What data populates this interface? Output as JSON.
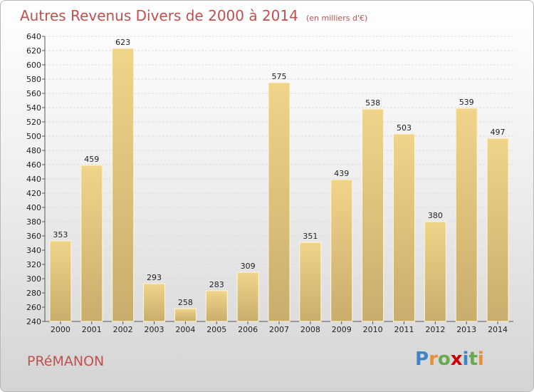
{
  "title": "Autres Revenus Divers de 2000 à 2014",
  "unit_note": "(en milliers d'€)",
  "town": "PRéMANON",
  "logo": {
    "letters": [
      "P",
      "r",
      "o",
      "x",
      "i",
      "t",
      "i"
    ],
    "colors": [
      "#3d85c6",
      "#e69138",
      "#6aa84f",
      "#cc0000",
      "#3d85c6",
      "#6aa84f",
      "#e69138"
    ]
  },
  "chart_data": {
    "type": "bar",
    "title": "Autres Revenus Divers de 2000 à 2014",
    "categories": [
      "2000",
      "2001",
      "2002",
      "2003",
      "2004",
      "2005",
      "2006",
      "2007",
      "2008",
      "2009",
      "2010",
      "2011",
      "2012",
      "2013",
      "2014"
    ],
    "values": [
      353,
      459,
      623,
      293,
      258,
      283,
      309,
      575,
      351,
      439,
      538,
      503,
      380,
      539,
      497
    ],
    "ylim": [
      240,
      640
    ],
    "yticks": [
      240,
      260,
      280,
      300,
      320,
      340,
      360,
      380,
      400,
      420,
      440,
      460,
      480,
      500,
      520,
      540,
      560,
      580,
      600,
      620,
      640
    ],
    "grid": true,
    "bar_color": "#f0d48a",
    "bar_color_dark": "#c8ad6c"
  }
}
